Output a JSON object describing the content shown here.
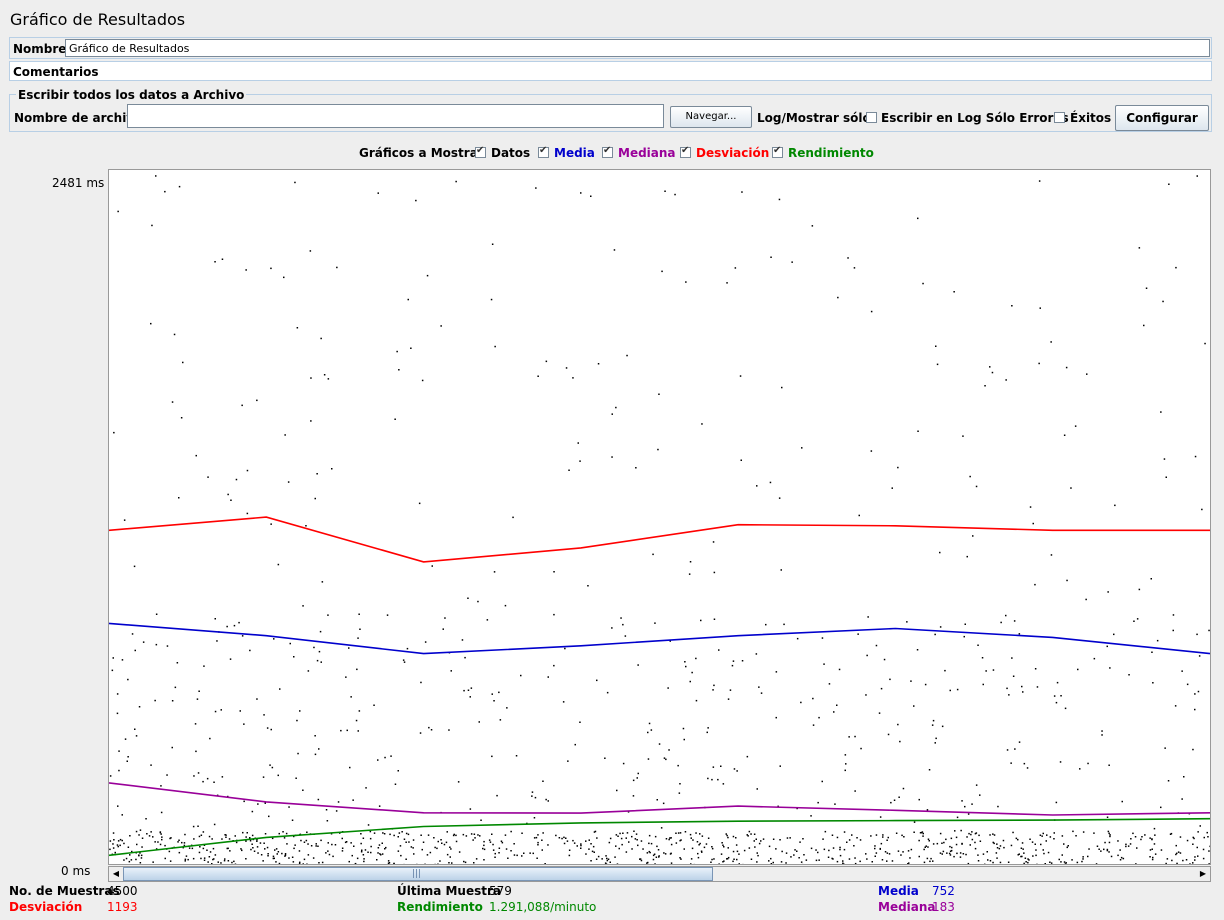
{
  "header": {
    "title": "Gráfico de Resultados"
  },
  "name_field": {
    "label": "Nombre:",
    "value": "Gráfico de Resultados"
  },
  "comments": {
    "label": "Comentarios"
  },
  "file_panel": {
    "legend": "Escribir todos los datos a Archivo",
    "file_label": "Nombre de archivo",
    "file_value": "",
    "browse": "Navegar...",
    "log_label": "Log/Mostrar sólo:",
    "errors_only": "Escribir en Log Sólo Errores",
    "successes": "Éxitos",
    "configure": "Configurar"
  },
  "graphs": {
    "label": "Gráficos a Mostrar",
    "options": [
      {
        "label": "Datos",
        "color": "#000000",
        "checked": true
      },
      {
        "label": "Media",
        "color": "#0000cc",
        "checked": true
      },
      {
        "label": "Mediana",
        "color": "#990099",
        "checked": true
      },
      {
        "label": "Desviación",
        "color": "#ff0000",
        "checked": true
      },
      {
        "label": "Rendimiento",
        "color": "#008800",
        "checked": true
      }
    ]
  },
  "chart_data": {
    "type": "line",
    "ylim": [
      0,
      2481
    ],
    "y_max_label": "2481  ms",
    "y_min_label": "0  ms",
    "series": [
      {
        "name": "Desviación",
        "color": "#ff0000",
        "values": [
          1193,
          1240,
          1080,
          1130,
          1213,
          1209,
          1193,
          1193
        ]
      },
      {
        "name": "Media",
        "color": "#0000cc",
        "values": [
          860,
          816,
          752,
          780,
          816,
          842,
          810,
          752
        ]
      },
      {
        "name": "Mediana",
        "color": "#990099",
        "values": [
          290,
          222,
          183,
          182,
          207,
          192,
          175,
          183
        ]
      },
      {
        "name": "Rendimiento",
        "color": "#008800",
        "values": [
          31,
          95,
          134,
          147,
          153,
          155,
          157,
          162
        ]
      }
    ]
  },
  "stats": {
    "samples_label": "No. de Muestras",
    "samples_value": "4500",
    "last_label": "Última Muestra",
    "last_value": "579",
    "avg_label": "Media",
    "avg_value": "752",
    "dev_label": "Desviación",
    "dev_value": "1193",
    "throughput_label": "Rendimiento",
    "throughput_value": "1.291,088/minuto",
    "median_label": "Mediana",
    "median_value": "183"
  },
  "colors": {
    "dev": "#ff0000",
    "avg": "#0000cc",
    "median": "#990099",
    "throughput": "#008800"
  }
}
